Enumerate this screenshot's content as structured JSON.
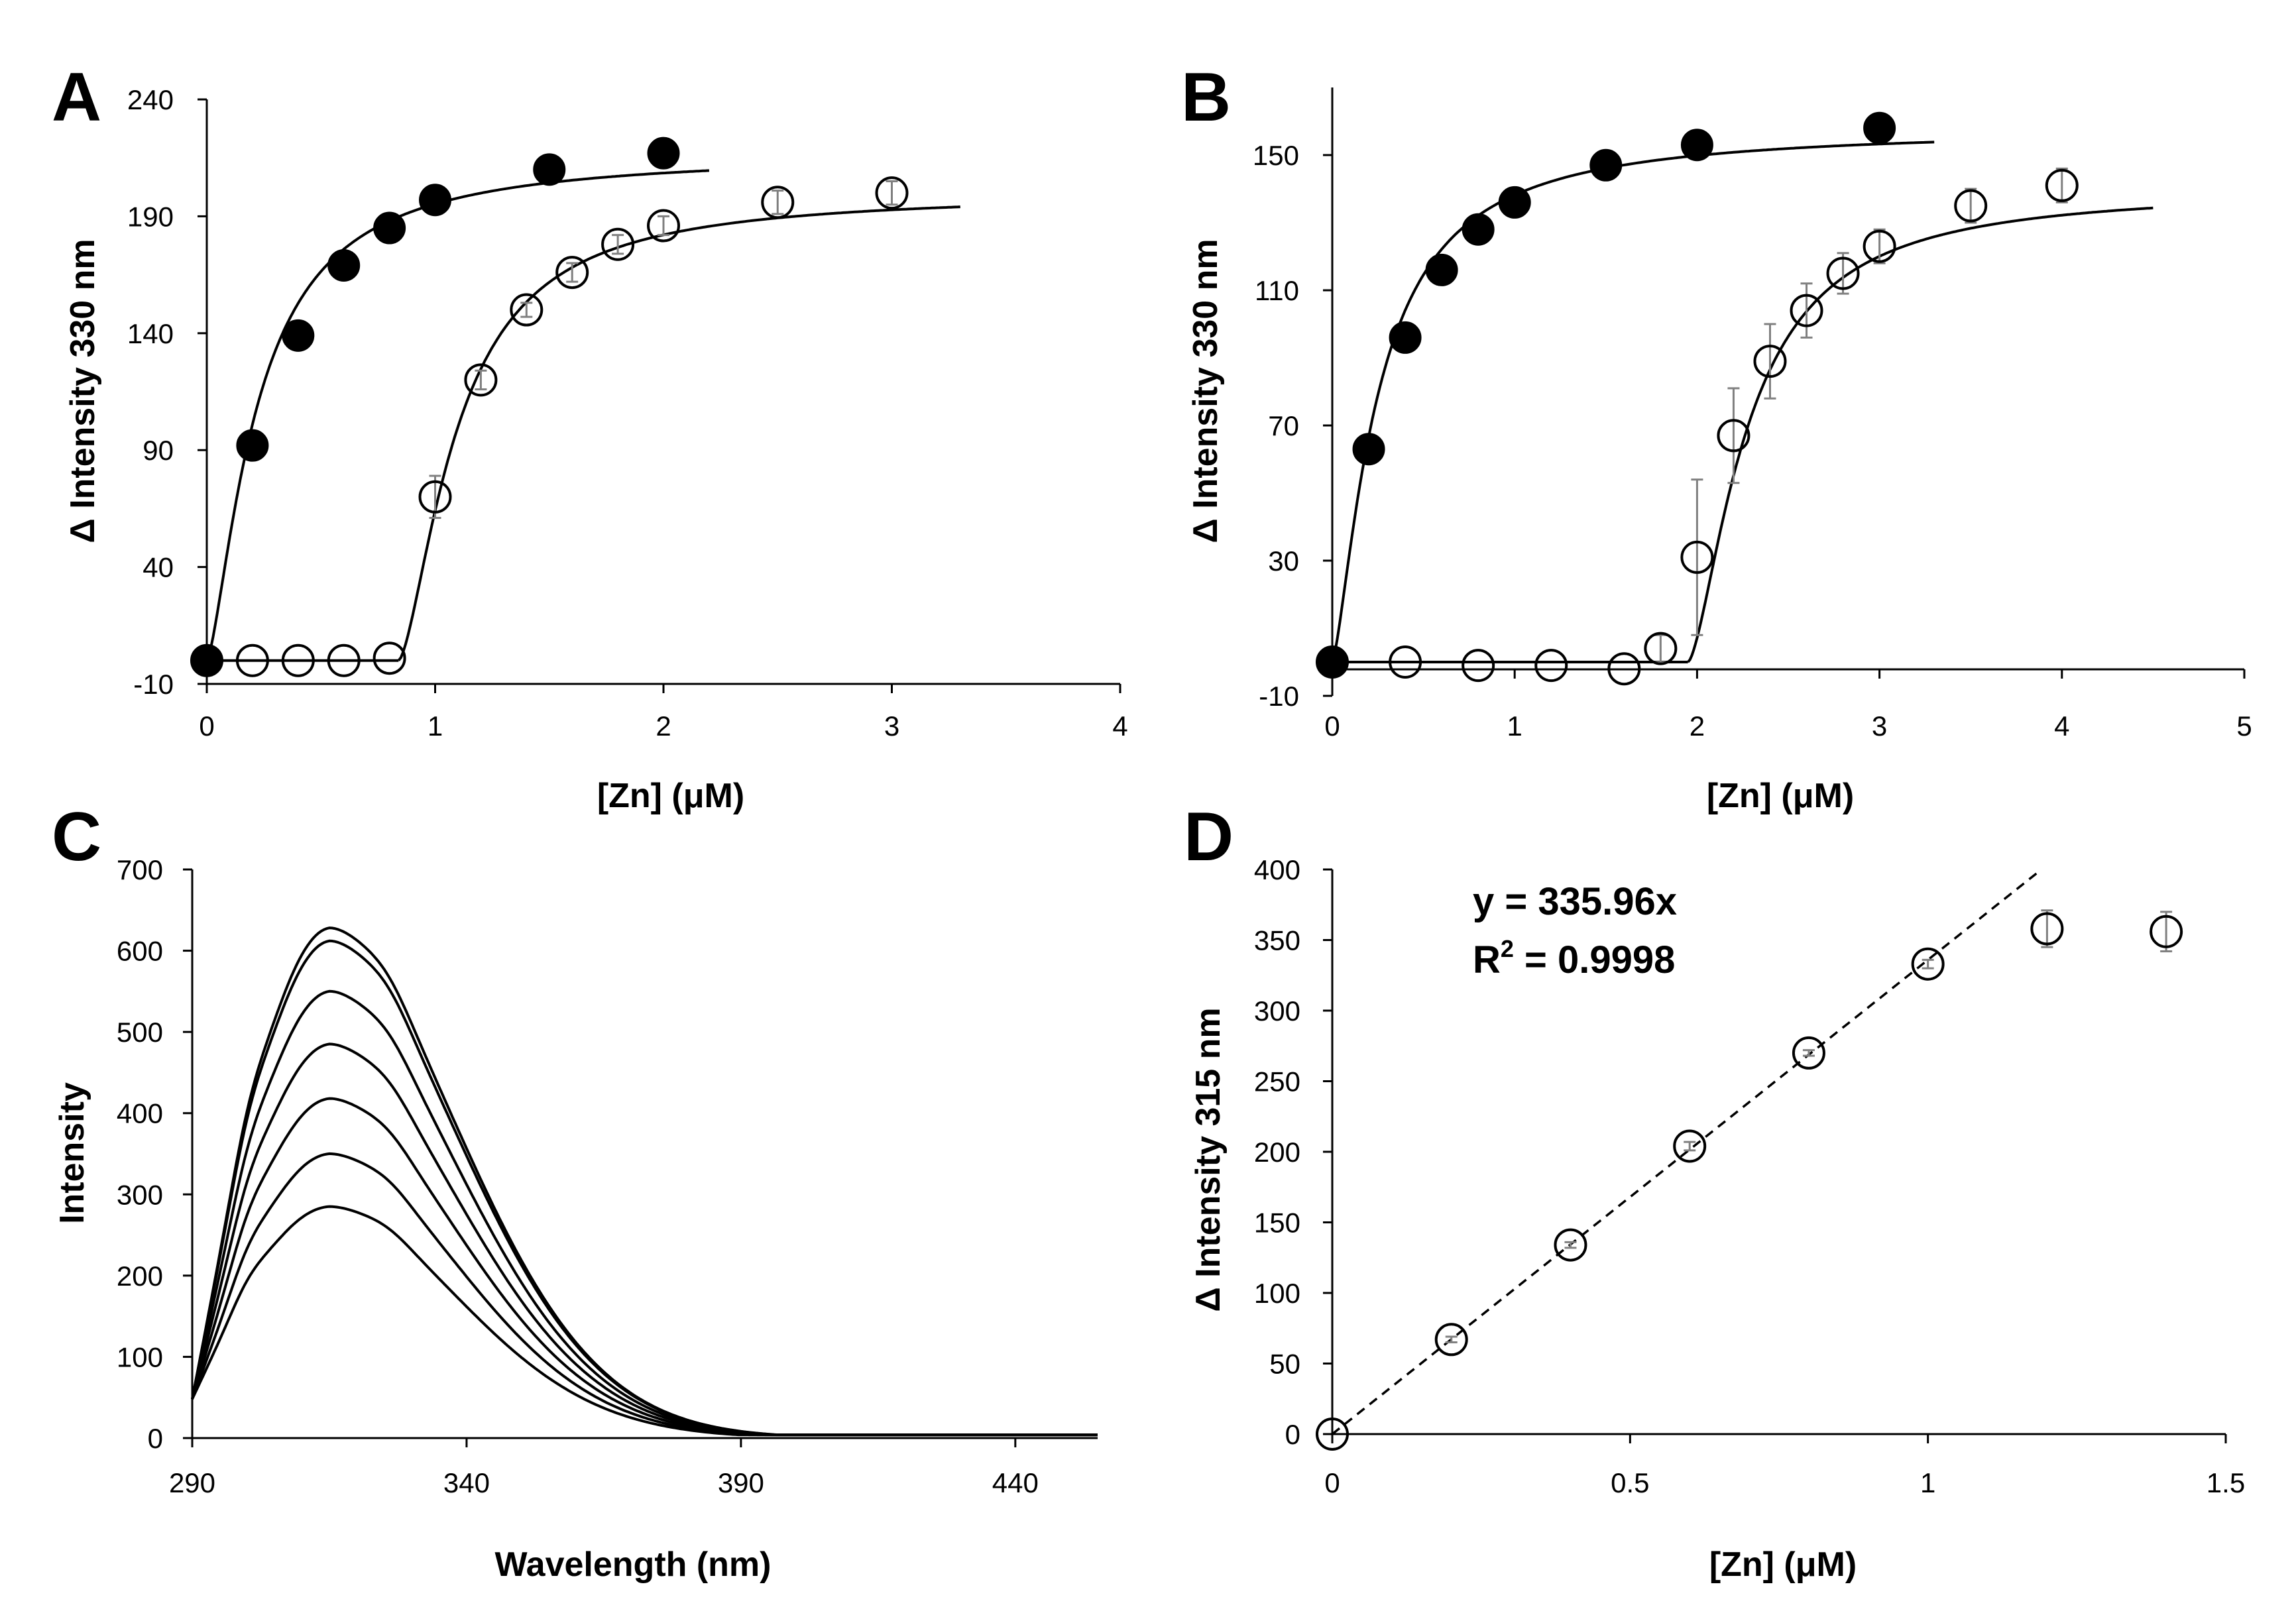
{
  "figure": {
    "background": "#ffffff",
    "ink": "#000000",
    "errorbar_color": "#808080"
  },
  "chart_data": [
    {
      "id": "A",
      "panel_label": "A",
      "type": "scatter",
      "xlabel": "[Zn] (μM)",
      "ylabel": "Δ Intensity 330 nm",
      "xlim": [
        0,
        4
      ],
      "ylim": [
        -10,
        240
      ],
      "xticks": [
        0,
        1,
        2,
        3,
        4
      ],
      "yticks": [
        -10,
        40,
        90,
        140,
        190,
        240
      ],
      "xtick_labels": [
        "0",
        "1",
        "2",
        "3",
        "4"
      ],
      "ytick_labels": [
        "-10",
        "40",
        "90",
        "140",
        "190",
        "240"
      ],
      "grid": false,
      "series": [
        {
          "name": "filled circles",
          "marker": "filled-circle",
          "x": [
            0,
            0.2,
            0.4,
            0.6,
            0.8,
            1.0,
            1.5,
            2.0
          ],
          "y": [
            0,
            92,
            139,
            169,
            185,
            197,
            210,
            217
          ],
          "err": [
            0,
            0,
            0,
            0,
            0,
            0,
            0,
            0
          ],
          "fit": {
            "model": "sigmoid",
            "Bmax": 217,
            "Kd": 0.22,
            "n": 1.45,
            "x0": 0,
            "xmax": 2.2
          }
        },
        {
          "name": "open circles",
          "marker": "open-circle",
          "x": [
            0,
            0.2,
            0.4,
            0.6,
            0.8,
            1.0,
            1.2,
            1.4,
            1.6,
            1.8,
            2.0,
            2.5,
            3.0
          ],
          "y": [
            0,
            0,
            0,
            0,
            1,
            70,
            120,
            150,
            166,
            178,
            186,
            196,
            200
          ],
          "err": [
            0,
            0,
            0,
            0,
            0,
            9,
            4,
            3,
            4,
            4,
            4,
            5,
            5
          ],
          "fit": {
            "model": "sigmoid",
            "Bmax": 200,
            "Kd": 0.26,
            "n": 1.55,
            "x0": 0.84,
            "xmax": 3.3
          }
        }
      ]
    },
    {
      "id": "B",
      "panel_label": "B",
      "type": "scatter",
      "xlabel": "[Zn] (μM)",
      "ylabel": "Δ Intensity 330 nm",
      "xlim": [
        0,
        5
      ],
      "ylim": [
        -10,
        170
      ],
      "xticks": [
        0,
        1,
        2,
        3,
        4,
        5
      ],
      "yticks": [
        -10,
        30,
        70,
        110,
        150
      ],
      "xtick_labels": [
        "0",
        "1",
        "2",
        "3",
        "4",
        "5"
      ],
      "ytick_labels": [
        "-10",
        "30",
        "70",
        "110",
        "150"
      ],
      "grid": false,
      "series": [
        {
          "name": "filled circles",
          "marker": "filled-circle",
          "x": [
            0,
            0.2,
            0.4,
            0.6,
            0.8,
            1.0,
            1.5,
            2.0,
            3.0
          ],
          "y": [
            0,
            63,
            96,
            116,
            128,
            136,
            147,
            153,
            158
          ],
          "err": [
            0,
            0,
            0,
            0,
            0,
            0,
            0,
            0,
            0
          ],
          "fit": {
            "model": "sigmoid",
            "Bmax": 158,
            "Kd": 0.25,
            "n": 1.4,
            "x0": 0,
            "xmax": 3.3
          }
        },
        {
          "name": "open circles",
          "marker": "open-circle",
          "x": [
            0,
            0.4,
            0.8,
            1.2,
            1.6,
            1.8,
            2.0,
            2.2,
            2.4,
            2.6,
            2.8,
            3.0,
            3.5,
            4.0
          ],
          "y": [
            0,
            0,
            -1,
            -1,
            -2,
            4,
            31,
            67,
            89,
            104,
            115,
            123,
            135,
            141
          ],
          "err": [
            0,
            0,
            0,
            0,
            0,
            4,
            23,
            14,
            11,
            8,
            6,
            5,
            5,
            5
          ],
          "fit": {
            "model": "sigmoid",
            "Bmax": 140,
            "Kd": 0.33,
            "n": 1.55,
            "x0": 1.95,
            "xmax": 4.5
          }
        }
      ]
    },
    {
      "id": "C",
      "panel_label": "C",
      "type": "line",
      "xlabel": "Wavelength (nm)",
      "ylabel": "Intensity",
      "xlim": [
        290,
        455
      ],
      "ylim": [
        0,
        700
      ],
      "xticks": [
        290,
        340,
        390,
        440
      ],
      "yticks": [
        0,
        100,
        200,
        300,
        400,
        500,
        600,
        700
      ],
      "xtick_labels": [
        "290",
        "340",
        "390",
        "440"
      ],
      "ytick_labels": [
        "0",
        "100",
        "200",
        "300",
        "400",
        "500",
        "600",
        "700"
      ],
      "grid": false,
      "peak_wavelength": 315,
      "baseline_at_290": 48,
      "series": [
        {
          "name": "trace 1",
          "peak": 285
        },
        {
          "name": "trace 2",
          "peak": 350
        },
        {
          "name": "trace 3",
          "peak": 418
        },
        {
          "name": "trace 4",
          "peak": 485
        },
        {
          "name": "trace 5",
          "peak": 550
        },
        {
          "name": "trace 6",
          "peak": 612
        },
        {
          "name": "trace 7",
          "peak": 628
        }
      ]
    },
    {
      "id": "D",
      "panel_label": "D",
      "type": "scatter",
      "xlabel": "[Zn] (μM)",
      "ylabel": "Δ Intensity 315 nm",
      "xlim": [
        0,
        1.5
      ],
      "ylim": [
        0,
        400
      ],
      "xticks": [
        0,
        0.5,
        1,
        1.5
      ],
      "yticks": [
        0,
        50,
        100,
        150,
        200,
        250,
        300,
        350,
        400
      ],
      "xtick_labels": [
        "0",
        "0.5",
        "1",
        "1.5"
      ],
      "ytick_labels": [
        "0",
        "50",
        "100",
        "150",
        "200",
        "250",
        "300",
        "350",
        "400"
      ],
      "grid": false,
      "equation": "y = 335.96x",
      "r2_prefix": "R",
      "r2_sup": "2",
      "r2_value": " = 0.9998",
      "trendline": {
        "slope": 335.96,
        "x_start": 0,
        "x_end": 1.19
      },
      "series": [
        {
          "name": "open circles",
          "marker": "open-circle",
          "x": [
            0,
            0.2,
            0.4,
            0.6,
            0.8,
            1.0,
            1.2,
            1.4
          ],
          "y": [
            0,
            67,
            134,
            204,
            270,
            333,
            358,
            356
          ],
          "err": [
            0,
            2,
            2,
            3,
            2,
            3,
            13,
            14
          ]
        }
      ]
    }
  ]
}
